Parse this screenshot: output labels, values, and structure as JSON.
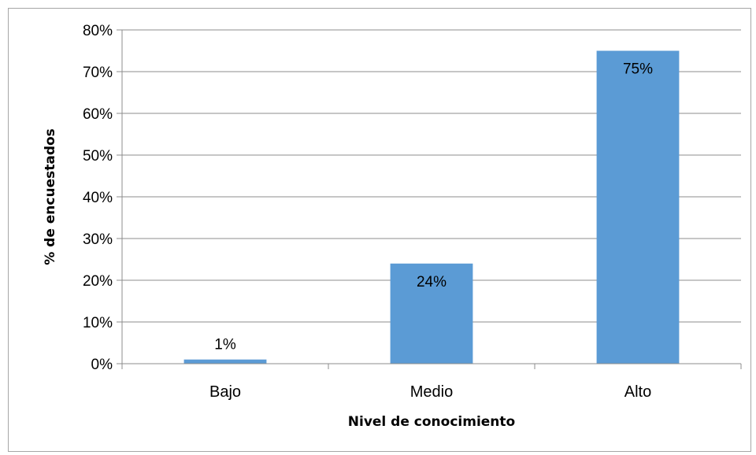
{
  "chart_data": {
    "type": "bar",
    "categories": [
      "Bajo",
      "Medio",
      "Alto"
    ],
    "values": [
      1,
      24,
      75
    ],
    "data_labels": [
      "1%",
      "24%",
      "75%"
    ],
    "xlabel": "Nivel de conocimiento",
    "ylabel": "% de encuestados",
    "ylim": [
      0,
      80
    ],
    "y_ticks": [
      "0%",
      "10%",
      "20%",
      "30%",
      "40%",
      "50%",
      "60%",
      "70%",
      "80%"
    ],
    "grid": true,
    "legend": "none",
    "bar_color": "#5b9bd5"
  }
}
